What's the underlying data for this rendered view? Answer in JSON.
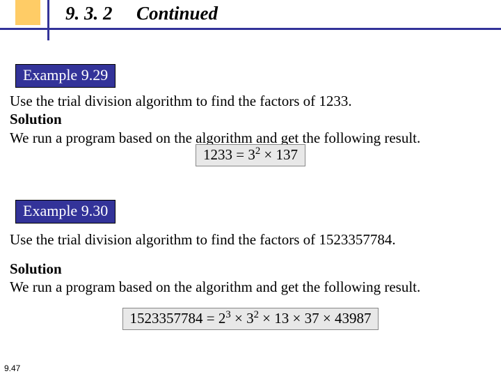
{
  "header": {
    "section_number": "9. 3. 2",
    "title": "Continued"
  },
  "example1": {
    "badge": "Example 9.29",
    "problem": "Use the trial division algorithm to find the factors of 1233.",
    "solution_label": "Solution",
    "solution_text": "We run a program based on the algorithm and get the following result.",
    "equation_base": "1233 = 3",
    "equation_sup": "2",
    "equation_tail": " × 137"
  },
  "example2": {
    "badge": "Example 9.30",
    "problem": "Use the trial division algorithm to find the factors of 1523357784.",
    "solution_label": "Solution",
    "solution_text": "We run a program based on the algorithm and get the following result.",
    "eq_lhs": "1523357784 = 2",
    "eq_s1": "3",
    "eq_mid1": " × 3",
    "eq_s2": "2",
    "eq_tail": " × 13 × 37 × 43987"
  },
  "page_number": "9.47",
  "colors": {
    "badge_bg": "#333399",
    "badge_text": "#ffffff",
    "accent_square": "#ffcc66",
    "line": "#333399",
    "equation_bg": "#e8e8e8"
  }
}
